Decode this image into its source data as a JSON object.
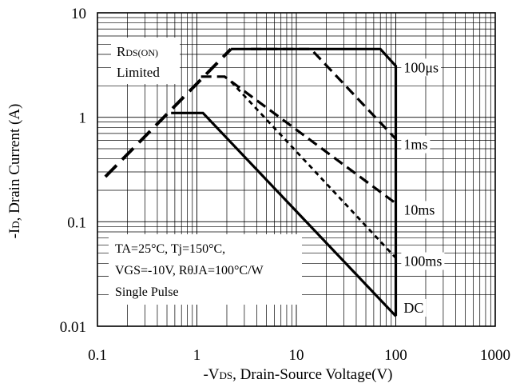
{
  "chart_data": {
    "type": "line",
    "title": "",
    "xlabel": "-V DS, Drain-Source Voltage(V)",
    "xlabel_parts": {
      "pre": "-V",
      "sub": "DS",
      "post": ", Drain-Source Voltage(V)"
    },
    "ylabel_parts": {
      "pre": "-I",
      "sub": "D",
      "post": ", Drain Current (A)"
    },
    "x_scale": "log",
    "y_scale": "log",
    "xlim": [
      0.1,
      1000
    ],
    "ylim": [
      0.01,
      10
    ],
    "x_ticks": [
      "0.1",
      "1",
      "10",
      "100",
      "1000"
    ],
    "y_ticks": [
      "0.01",
      "0.1",
      "1",
      "10"
    ],
    "grid": true,
    "series": [
      {
        "name": "RDS(ON) Limited",
        "style": "dashed",
        "points": [
          [
            0.12,
            0.27
          ],
          [
            2.2,
            4.5
          ]
        ]
      },
      {
        "name": "100μs",
        "style": "solid",
        "points": [
          [
            2.2,
            4.5
          ],
          [
            70,
            4.5
          ],
          [
            100,
            3.1
          ],
          [
            100,
            0.0125
          ]
        ]
      },
      {
        "name": "1ms",
        "style": "dashed",
        "points": [
          [
            3.5,
            4.5
          ],
          [
            14,
            4.5
          ],
          [
            100,
            0.62
          ]
        ]
      },
      {
        "name": "10ms",
        "style": "dashed",
        "points": [
          [
            1.1,
            2.45
          ],
          [
            1.9,
            2.45
          ],
          [
            100,
            0.15
          ]
        ]
      },
      {
        "name": "100ms",
        "style": "dotted",
        "points": [
          [
            2.2,
            2.2
          ],
          [
            100,
            0.045
          ]
        ]
      },
      {
        "name": "DC",
        "style": "solid",
        "points": [
          [
            0.55,
            1.1
          ],
          [
            1.15,
            1.1
          ],
          [
            100,
            0.0125
          ]
        ]
      }
    ],
    "series_labels": [
      {
        "text": "100μs",
        "x": 120,
        "y": 3.0
      },
      {
        "text": "1ms",
        "x": 120,
        "y": 0.55
      },
      {
        "text": "10ms",
        "x": 120,
        "y": 0.13
      },
      {
        "text": "100ms",
        "x": 120,
        "y": 0.042
      },
      {
        "text": "DC",
        "x": 120,
        "y": 0.015
      }
    ],
    "annotations": {
      "limit_label": {
        "line1_pre": "R",
        "line1_sub": "DS(ON)",
        "line2": "Limited"
      },
      "conditions": {
        "line1": "TA=25°C, Tj=150°C,",
        "line2": "VGS=-10V, RθJA=100°C/W",
        "line3": "Single Pulse"
      }
    }
  }
}
